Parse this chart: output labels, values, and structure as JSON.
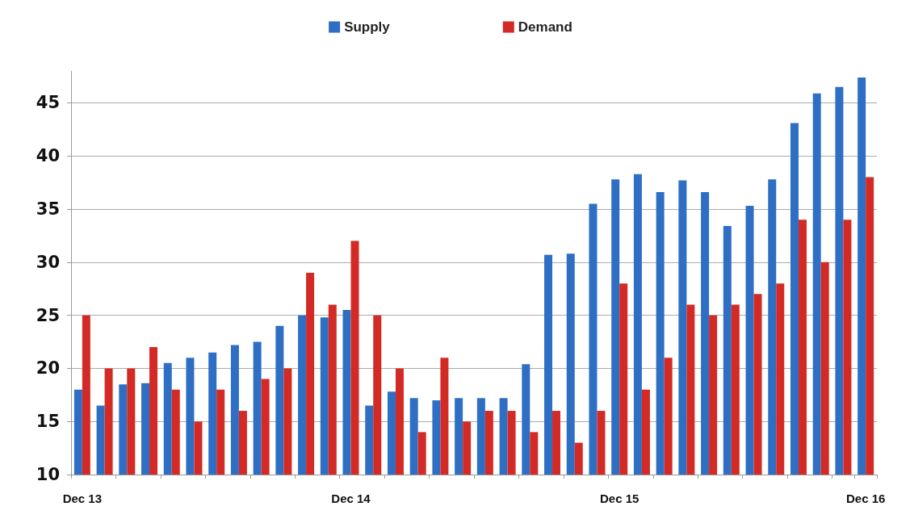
{
  "chart_data": {
    "type": "bar",
    "categories": [
      "Dec 13",
      null,
      null,
      null,
      null,
      null,
      null,
      null,
      null,
      null,
      null,
      null,
      "Dec 14",
      null,
      null,
      null,
      null,
      null,
      null,
      null,
      null,
      null,
      null,
      null,
      "Dec 15",
      null,
      null,
      null,
      null,
      null,
      null,
      null,
      null,
      null,
      null,
      "Dec 16"
    ],
    "series": [
      {
        "name": "Supply",
        "color": "#2e6fc4",
        "values": [
          18,
          16.5,
          18.5,
          18.6,
          20.5,
          21,
          21.5,
          22.2,
          22.5,
          24,
          25,
          24.8,
          25.5,
          16.5,
          17.8,
          17.2,
          17,
          17.2,
          17.2,
          17.2,
          20.4,
          30.7,
          30.8,
          35.5,
          37.8,
          38.3,
          36.6,
          37.7,
          36.6,
          33.4,
          35.3,
          37.8,
          43.1,
          45.9,
          46.5,
          47.4
        ]
      },
      {
        "name": "Demand",
        "color": "#d42a25",
        "values": [
          25,
          20,
          20,
          22,
          18,
          15,
          18,
          16,
          19,
          20,
          29,
          26,
          32,
          25,
          20,
          14,
          21,
          15,
          16,
          16,
          14,
          16,
          13,
          16,
          28,
          18,
          21,
          26,
          25,
          26,
          27,
          28,
          34,
          30,
          34,
          38
        ]
      }
    ],
    "ylim": [
      10,
      48
    ],
    "yticks": [
      10,
      15,
      20,
      25,
      30,
      35,
      40,
      45
    ],
    "grid": "y",
    "legend": "top"
  }
}
